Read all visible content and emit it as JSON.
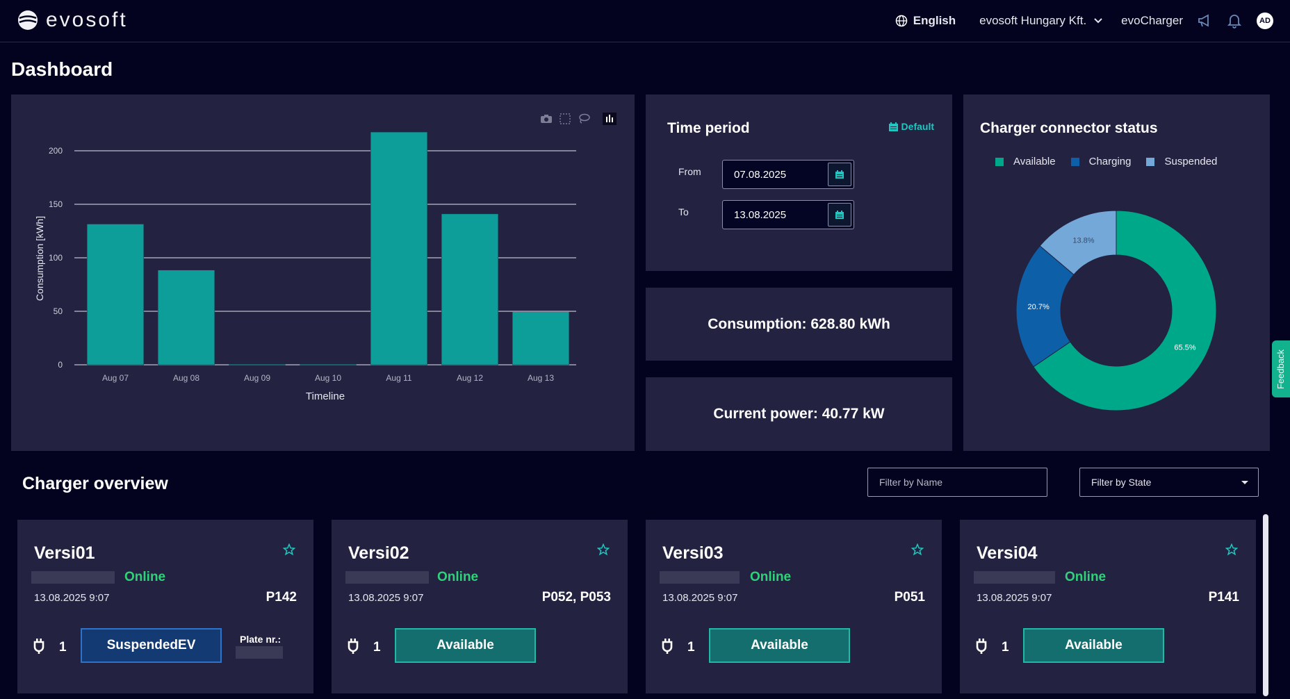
{
  "header": {
    "logo_text": "evosoft",
    "language": "English",
    "company": "evosoft Hungary Kft.",
    "product": "evoCharger",
    "avatar_initials": "AD"
  },
  "page": {
    "title": "Dashboard"
  },
  "chart_toolbar": {
    "icons": [
      "camera-icon",
      "box-select-icon",
      "lasso-icon",
      "bar-chart-icon"
    ]
  },
  "chart_data": {
    "type": "bar",
    "categories": [
      "Aug 07",
      "Aug 08",
      "Aug 09",
      "Aug 10",
      "Aug 11",
      "Aug 12",
      "Aug 13"
    ],
    "values": [
      131.5,
      88.5,
      0,
      0,
      217.5,
      141,
      49.5
    ],
    "xlabel": "Timeline",
    "ylabel": "Consumption [kWh]",
    "yticks": [
      0,
      50,
      100,
      150,
      200
    ],
    "ylim": [
      0,
      225
    ],
    "bar_color": "#0d9e9a",
    "grid": true
  },
  "time_period": {
    "title": "Time period",
    "default_label": "Default",
    "from_label": "From",
    "from_value": "07.08.2025",
    "to_label": "To",
    "to_value": "13.08.2025"
  },
  "consumption": {
    "text": "Consumption: 628.80 kWh"
  },
  "current_power": {
    "text": "Current power: 40.77 kW"
  },
  "connector_status": {
    "title": "Charger connector status",
    "chart_data": {
      "type": "pie",
      "labels": [
        "Available",
        "Charging",
        "Suspended"
      ],
      "values": [
        65.5,
        20.7,
        13.8
      ],
      "value_labels": [
        "65.5%",
        "20.7%",
        "13.8%"
      ],
      "colors": [
        "#00a88a",
        "#0d5fa8",
        "#73a8d9"
      ],
      "hole": true
    }
  },
  "charger_overview": {
    "title": "Charger overview",
    "filter_name_placeholder": "Filter by Name",
    "filter_state_label": "Filter by State"
  },
  "chargers": [
    {
      "name": "Versi01",
      "status": "Online",
      "timestamp": "13.08.2025 9:07",
      "plates": "P142",
      "connector": "1",
      "state": "SuspendedEV",
      "plate_label": "Plate nr.:"
    },
    {
      "name": "Versi02",
      "status": "Online",
      "timestamp": "13.08.2025 9:07",
      "plates": "P052, P053",
      "connector": "1",
      "state": "Available"
    },
    {
      "name": "Versi03",
      "status": "Online",
      "timestamp": "13.08.2025 9:07",
      "plates": "P051",
      "connector": "1",
      "state": "Available"
    },
    {
      "name": "Versi04",
      "status": "Online",
      "timestamp": "13.08.2025 9:07",
      "plates": "P141",
      "connector": "1",
      "state": "Available"
    }
  ],
  "feedback": {
    "label": "Feedback"
  },
  "colors": {
    "background": "#03031f",
    "panel": "#232341",
    "accent": "#1fc7c0",
    "online": "#2fd17a"
  }
}
